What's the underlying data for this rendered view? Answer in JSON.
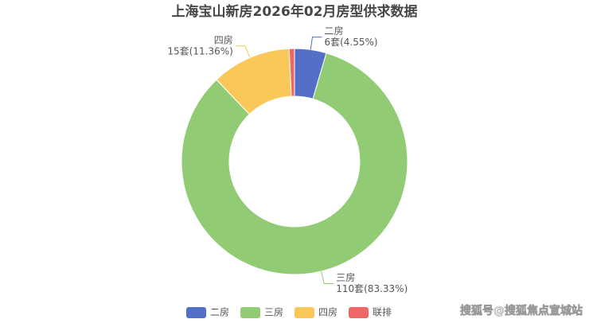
{
  "chart_data": {
    "type": "donut",
    "title": "上海宝山新房2026年02月房型供求数据",
    "categories": [
      "二房",
      "三房",
      "四房",
      "联排"
    ],
    "values": [
      6,
      110,
      15,
      1
    ],
    "value_labels": [
      "6套(4.55%)",
      "110套(83.33%)",
      "15套(11.36%)",
      null
    ],
    "colors": [
      "#5470c6",
      "#91cc75",
      "#fac858",
      "#ee6666"
    ],
    "legend": "bottom"
  },
  "watermark": "搜狐号@搜狐焦点宣城站"
}
